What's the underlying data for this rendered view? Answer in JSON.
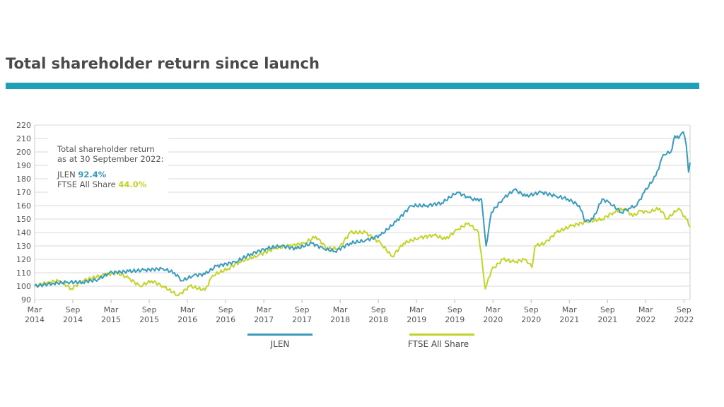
{
  "title": "Total shareholder return since launch",
  "colors": {
    "accent": "#1fa0b8",
    "jlen": "#3a9bbd",
    "ftse": "#c2d42a",
    "grid": "#d9d9d9"
  },
  "annotation": {
    "line1": "Total shareholder return",
    "line2": "as at 30 September 2022:",
    "jlen_label": "JLEN",
    "jlen_value": "92.4%",
    "ftse_label": "FTSE All Share",
    "ftse_value": "44.0%"
  },
  "chart_data": {
    "type": "line",
    "title": "Total shareholder return since launch",
    "xlabel": "",
    "ylabel": "",
    "ylim": [
      90,
      220
    ],
    "yticks": [
      90,
      100,
      110,
      120,
      130,
      140,
      150,
      160,
      170,
      180,
      190,
      200,
      210,
      220
    ],
    "xlim": [
      2014.17,
      2022.75
    ],
    "xticks": [
      {
        "x": 2014.17,
        "l1": "Mar",
        "l2": "2014"
      },
      {
        "x": 2014.67,
        "l1": "Sep",
        "l2": "2014"
      },
      {
        "x": 2015.17,
        "l1": "Mar",
        "l2": "2015"
      },
      {
        "x": 2015.67,
        "l1": "Sep",
        "l2": "2015"
      },
      {
        "x": 2016.17,
        "l1": "Mar",
        "l2": "2016"
      },
      {
        "x": 2016.67,
        "l1": "Sep",
        "l2": "2016"
      },
      {
        "x": 2017.17,
        "l1": "Mar",
        "l2": "2017"
      },
      {
        "x": 2017.67,
        "l1": "Sep",
        "l2": "2017"
      },
      {
        "x": 2018.17,
        "l1": "Mar",
        "l2": "2018"
      },
      {
        "x": 2018.67,
        "l1": "Sep",
        "l2": "2018"
      },
      {
        "x": 2019.17,
        "l1": "Mar",
        "l2": "2019"
      },
      {
        "x": 2019.67,
        "l1": "Sep",
        "l2": "2019"
      },
      {
        "x": 2020.17,
        "l1": "Mar",
        "l2": "2020"
      },
      {
        "x": 2020.67,
        "l1": "Sep",
        "l2": "2020"
      },
      {
        "x": 2021.17,
        "l1": "Mar",
        "l2": "2021"
      },
      {
        "x": 2021.67,
        "l1": "Sep",
        "l2": "2021"
      },
      {
        "x": 2022.17,
        "l1": "Mar",
        "l2": "2022"
      },
      {
        "x": 2022.67,
        "l1": "Sep",
        "l2": "2022"
      }
    ],
    "legend_position": "bottom",
    "series": [
      {
        "name": "JLEN",
        "color": "#3a9bbd",
        "points": [
          [
            2014.17,
            100
          ],
          [
            2014.4,
            102
          ],
          [
            2014.6,
            103
          ],
          [
            2014.8,
            103
          ],
          [
            2015.0,
            105
          ],
          [
            2015.15,
            110
          ],
          [
            2015.4,
            111
          ],
          [
            2015.6,
            112
          ],
          [
            2015.85,
            113
          ],
          [
            2016.0,
            110
          ],
          [
            2016.1,
            104
          ],
          [
            2016.25,
            108
          ],
          [
            2016.4,
            109
          ],
          [
            2016.55,
            115
          ],
          [
            2016.8,
            118
          ],
          [
            2017.0,
            124
          ],
          [
            2017.2,
            128
          ],
          [
            2017.4,
            130
          ],
          [
            2017.6,
            128
          ],
          [
            2017.8,
            132
          ],
          [
            2017.95,
            128
          ],
          [
            2018.1,
            126
          ],
          [
            2018.3,
            132
          ],
          [
            2018.5,
            134
          ],
          [
            2018.7,
            138
          ],
          [
            2018.9,
            148
          ],
          [
            2019.1,
            160
          ],
          [
            2019.3,
            160
          ],
          [
            2019.5,
            162
          ],
          [
            2019.7,
            170
          ],
          [
            2019.85,
            166
          ],
          [
            2019.95,
            164
          ],
          [
            2020.02,
            165
          ],
          [
            2020.08,
            130
          ],
          [
            2020.15,
            155
          ],
          [
            2020.3,
            165
          ],
          [
            2020.45,
            172
          ],
          [
            2020.6,
            167
          ],
          [
            2020.8,
            170
          ],
          [
            2021.0,
            167
          ],
          [
            2021.15,
            165
          ],
          [
            2021.3,
            160
          ],
          [
            2021.38,
            148
          ],
          [
            2021.48,
            150
          ],
          [
            2021.6,
            165
          ],
          [
            2021.7,
            162
          ],
          [
            2021.85,
            155
          ],
          [
            2021.95,
            158
          ],
          [
            2022.05,
            160
          ],
          [
            2022.15,
            170
          ],
          [
            2022.3,
            182
          ],
          [
            2022.4,
            198
          ],
          [
            2022.5,
            200
          ],
          [
            2022.55,
            212
          ],
          [
            2022.6,
            210
          ],
          [
            2022.66,
            215
          ],
          [
            2022.7,
            205
          ],
          [
            2022.73,
            185
          ],
          [
            2022.75,
            192
          ]
        ]
      },
      {
        "name": "FTSE All Share",
        "color": "#c2d42a",
        "points": [
          [
            2014.17,
            100
          ],
          [
            2014.35,
            103
          ],
          [
            2014.5,
            104
          ],
          [
            2014.65,
            98
          ],
          [
            2014.8,
            104
          ],
          [
            2015.05,
            108
          ],
          [
            2015.25,
            110
          ],
          [
            2015.4,
            106
          ],
          [
            2015.55,
            100
          ],
          [
            2015.7,
            104
          ],
          [
            2015.85,
            100
          ],
          [
            2016.05,
            93
          ],
          [
            2016.2,
            100
          ],
          [
            2016.4,
            97
          ],
          [
            2016.5,
            108
          ],
          [
            2016.7,
            113
          ],
          [
            2016.85,
            118
          ],
          [
            2017.1,
            123
          ],
          [
            2017.3,
            128
          ],
          [
            2017.5,
            130
          ],
          [
            2017.7,
            132
          ],
          [
            2017.85,
            137
          ],
          [
            2018.0,
            128
          ],
          [
            2018.15,
            128
          ],
          [
            2018.3,
            140
          ],
          [
            2018.5,
            140
          ],
          [
            2018.7,
            132
          ],
          [
            2018.85,
            122
          ],
          [
            2019.0,
            132
          ],
          [
            2019.2,
            136
          ],
          [
            2019.4,
            138
          ],
          [
            2019.55,
            135
          ],
          [
            2019.7,
            142
          ],
          [
            2019.85,
            147
          ],
          [
            2019.98,
            140
          ],
          [
            2020.07,
            98
          ],
          [
            2020.15,
            112
          ],
          [
            2020.3,
            120
          ],
          [
            2020.45,
            118
          ],
          [
            2020.6,
            120
          ],
          [
            2020.68,
            114
          ],
          [
            2020.72,
            130
          ],
          [
            2020.85,
            132
          ],
          [
            2021.0,
            140
          ],
          [
            2021.2,
            145
          ],
          [
            2021.4,
            148
          ],
          [
            2021.6,
            150
          ],
          [
            2021.75,
            155
          ],
          [
            2021.9,
            158
          ],
          [
            2022.0,
            152
          ],
          [
            2022.1,
            156
          ],
          [
            2022.2,
            155
          ],
          [
            2022.35,
            158
          ],
          [
            2022.45,
            150
          ],
          [
            2022.6,
            158
          ],
          [
            2022.7,
            150
          ],
          [
            2022.75,
            144
          ]
        ]
      }
    ]
  }
}
